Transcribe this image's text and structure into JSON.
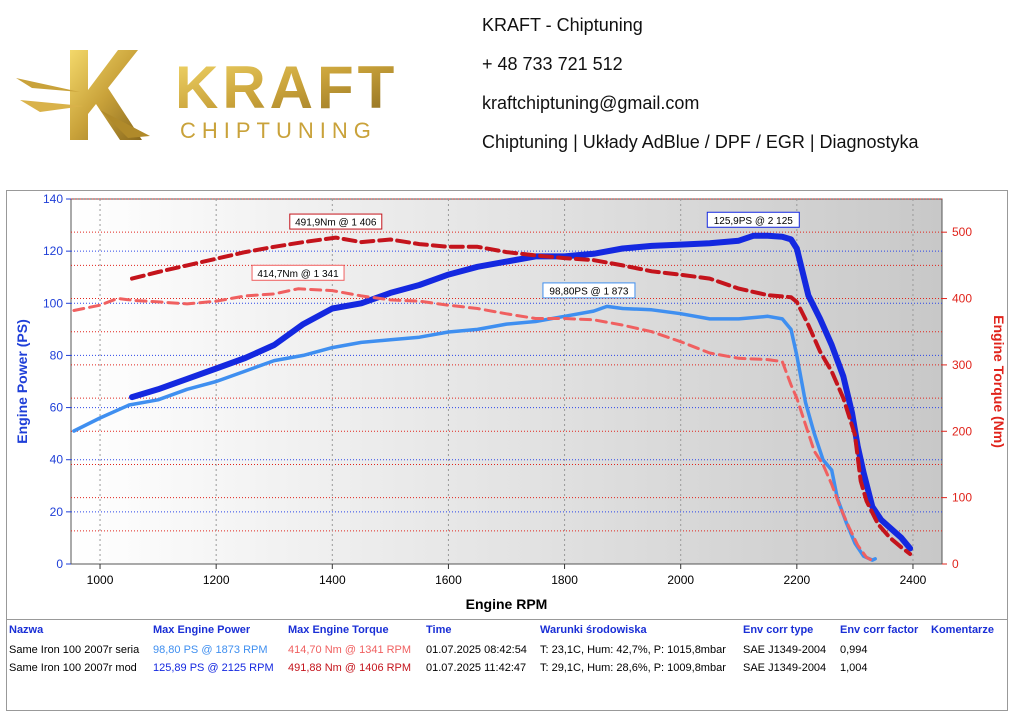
{
  "header": {
    "logo_text": "KRAFT",
    "logo_subtext": "CHIPTUNING",
    "contact_lines": [
      "KRAFT - Chiptuning",
      "+ 48 733 721 512",
      "kraftchiptuning@gmail.com",
      "Chiptuning | Układy AdBlue / DPF / EGR | Diagnostyka"
    ]
  },
  "colors": {
    "power_mod": "#1428e0",
    "power_stock": "#3f8ff0",
    "torque_mod": "#c4141c",
    "torque_stock": "#f06060",
    "left_axis": "#1f3fd8",
    "right_axis": "#e0241c"
  },
  "chart_data": {
    "type": "line",
    "xlabel": "Engine RPM",
    "ylabel": "Engine Power (PS)",
    "y2label": "Engine Torque (Nm)",
    "xlim": [
      950,
      2450
    ],
    "ylim": [
      0,
      140
    ],
    "y2lim": [
      0,
      550
    ],
    "x_ticks": [
      1000,
      1200,
      1400,
      1600,
      1800,
      2000,
      2200,
      2400
    ],
    "y_ticks": [
      0,
      20,
      40,
      60,
      80,
      100,
      120,
      140
    ],
    "y2_ticks": [
      0,
      100,
      200,
      300,
      400,
      500
    ],
    "grid": true,
    "series": [
      {
        "axis": "left",
        "style": "solid-thick",
        "color_key": "power_mod",
        "points": [
          [
            1055,
            64
          ],
          [
            1100,
            67
          ],
          [
            1150,
            71
          ],
          [
            1200,
            75
          ],
          [
            1250,
            79
          ],
          [
            1300,
            84
          ],
          [
            1350,
            92
          ],
          [
            1400,
            98
          ],
          [
            1450,
            100
          ],
          [
            1500,
            104
          ],
          [
            1550,
            107
          ],
          [
            1600,
            111
          ],
          [
            1650,
            114
          ],
          [
            1700,
            116
          ],
          [
            1750,
            118
          ],
          [
            1800,
            118
          ],
          [
            1850,
            119
          ],
          [
            1900,
            121
          ],
          [
            1950,
            122
          ],
          [
            2000,
            122.5
          ],
          [
            2050,
            123
          ],
          [
            2100,
            124
          ],
          [
            2125,
            125.9
          ],
          [
            2150,
            125.9
          ],
          [
            2175,
            125.5
          ],
          [
            2190,
            124.5
          ],
          [
            2200,
            121
          ],
          [
            2220,
            103
          ],
          [
            2240,
            94
          ],
          [
            2260,
            84
          ],
          [
            2280,
            72
          ],
          [
            2295,
            58
          ],
          [
            2305,
            45
          ],
          [
            2315,
            35
          ],
          [
            2330,
            22
          ],
          [
            2345,
            17
          ],
          [
            2360,
            14
          ],
          [
            2380,
            10
          ],
          [
            2395,
            6
          ]
        ]
      },
      {
        "axis": "left",
        "style": "solid",
        "color_key": "power_stock",
        "points": [
          [
            955,
            51
          ],
          [
            1000,
            56
          ],
          [
            1050,
            61
          ],
          [
            1100,
            63
          ],
          [
            1150,
            67
          ],
          [
            1200,
            70
          ],
          [
            1250,
            74
          ],
          [
            1300,
            78
          ],
          [
            1350,
            80
          ],
          [
            1400,
            83
          ],
          [
            1450,
            85
          ],
          [
            1500,
            86
          ],
          [
            1550,
            87
          ],
          [
            1600,
            89
          ],
          [
            1650,
            90
          ],
          [
            1700,
            92
          ],
          [
            1750,
            93
          ],
          [
            1800,
            95
          ],
          [
            1850,
            97
          ],
          [
            1873,
            98.8
          ],
          [
            1900,
            98
          ],
          [
            1950,
            97.5
          ],
          [
            2000,
            96
          ],
          [
            2050,
            94
          ],
          [
            2100,
            94
          ],
          [
            2150,
            95
          ],
          [
            2175,
            94
          ],
          [
            2190,
            90
          ],
          [
            2200,
            80
          ],
          [
            2215,
            62
          ],
          [
            2230,
            50
          ],
          [
            2245,
            40
          ],
          [
            2260,
            36
          ],
          [
            2270,
            25
          ],
          [
            2285,
            16
          ],
          [
            2300,
            8
          ],
          [
            2315,
            3
          ],
          [
            2330,
            1.5
          ],
          [
            2335,
            2
          ]
        ]
      },
      {
        "axis": "right",
        "style": "dashed-thick",
        "color_key": "torque_mod",
        "points": [
          [
            1055,
            430
          ],
          [
            1100,
            440
          ],
          [
            1150,
            450
          ],
          [
            1200,
            460
          ],
          [
            1250,
            470
          ],
          [
            1300,
            478
          ],
          [
            1350,
            485
          ],
          [
            1406,
            491.9
          ],
          [
            1450,
            485
          ],
          [
            1500,
            489
          ],
          [
            1550,
            482
          ],
          [
            1600,
            478
          ],
          [
            1650,
            478
          ],
          [
            1700,
            470
          ],
          [
            1750,
            465
          ],
          [
            1800,
            461
          ],
          [
            1850,
            458
          ],
          [
            1900,
            450
          ],
          [
            1950,
            441
          ],
          [
            2000,
            436
          ],
          [
            2050,
            430
          ],
          [
            2100,
            415
          ],
          [
            2150,
            405
          ],
          [
            2190,
            402
          ],
          [
            2200,
            395
          ],
          [
            2220,
            360
          ],
          [
            2240,
            320
          ],
          [
            2260,
            290
          ],
          [
            2280,
            250
          ],
          [
            2300,
            195
          ],
          [
            2310,
            125
          ],
          [
            2320,
            95
          ],
          [
            2340,
            60
          ],
          [
            2360,
            40
          ],
          [
            2380,
            25
          ],
          [
            2395,
            15
          ]
        ]
      },
      {
        "axis": "right",
        "style": "dashed",
        "color_key": "torque_stock",
        "points": [
          [
            955,
            382
          ],
          [
            1000,
            390
          ],
          [
            1030,
            400
          ],
          [
            1060,
            397
          ],
          [
            1100,
            395
          ],
          [
            1150,
            392
          ],
          [
            1200,
            396
          ],
          [
            1250,
            404
          ],
          [
            1300,
            407
          ],
          [
            1341,
            414.7
          ],
          [
            1400,
            412
          ],
          [
            1450,
            404
          ],
          [
            1500,
            398
          ],
          [
            1550,
            396
          ],
          [
            1600,
            390
          ],
          [
            1650,
            385
          ],
          [
            1700,
            377
          ],
          [
            1750,
            370
          ],
          [
            1800,
            370
          ],
          [
            1850,
            368
          ],
          [
            1900,
            360
          ],
          [
            1950,
            350
          ],
          [
            2000,
            335
          ],
          [
            2050,
            318
          ],
          [
            2100,
            310
          ],
          [
            2150,
            308
          ],
          [
            2175,
            305
          ],
          [
            2190,
            270
          ],
          [
            2200,
            250
          ],
          [
            2215,
            210
          ],
          [
            2230,
            170
          ],
          [
            2245,
            150
          ],
          [
            2260,
            120
          ],
          [
            2275,
            85
          ],
          [
            2290,
            55
          ],
          [
            2305,
            28
          ],
          [
            2320,
            10
          ],
          [
            2335,
            3
          ]
        ]
      }
    ],
    "annotations": [
      {
        "text": "491,9Nm @ 1 406",
        "series": 2,
        "x": 1406,
        "y": 491.9,
        "axis": "right",
        "color_key": "torque_mod"
      },
      {
        "text": "414,7Nm @ 1 341",
        "series": 3,
        "x": 1341,
        "y": 414.7,
        "axis": "right",
        "color_key": "torque_stock"
      },
      {
        "text": "125,9PS @ 2 125",
        "series": 0,
        "x": 2125,
        "y": 125.9,
        "axis": "left",
        "color_key": "power_mod"
      },
      {
        "text": "98,80PS @ 1 873",
        "series": 1,
        "x": 1873,
        "y": 98.8,
        "axis": "left",
        "color_key": "power_stock"
      }
    ]
  },
  "table": {
    "headers": [
      "Nazwa",
      "Max Engine Power",
      "Max Engine Torque",
      "Time",
      "Warunki środowiska",
      "Env corr type",
      "Env corr factor",
      "Komentarze"
    ],
    "rows": [
      [
        "Same Iron 100 2007r seria",
        "98,80 PS @ 1873 RPM",
        "414,70 Nm @ 1341 RPM",
        "01.07.2025 08:42:54",
        "T: 23,1C, Hum: 42,7%, P: 1015,8mbar",
        "SAE J1349-2004",
        "0,994",
        ""
      ],
      [
        "Same Iron 100 2007r mod",
        "125,89 PS @ 2125 RPM",
        "491,88 Nm @ 1406 RPM",
        "01.07.2025 11:42:47",
        "T: 29,1C, Hum: 28,6%, P: 1009,8mbar",
        "SAE J1349-2004",
        "1,004",
        ""
      ]
    ]
  }
}
